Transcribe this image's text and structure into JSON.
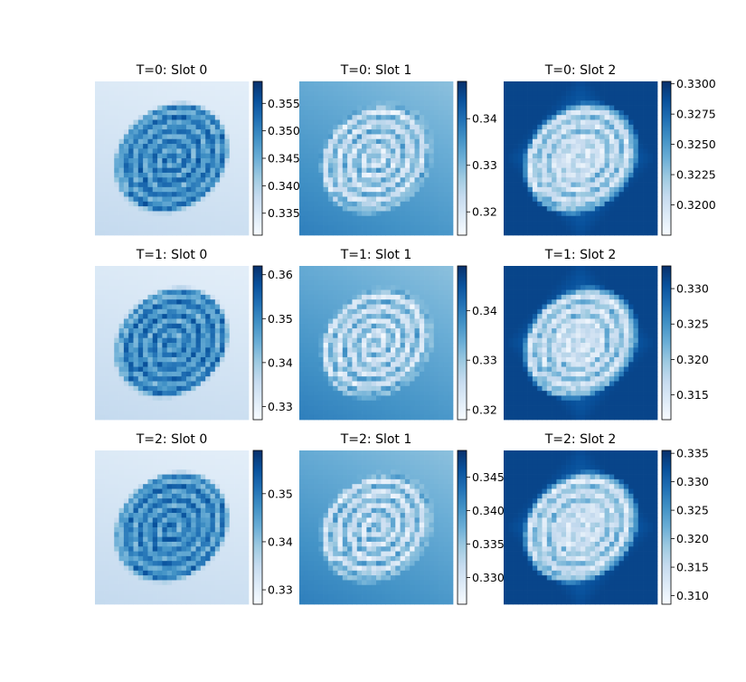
{
  "chart_data": [
    {
      "type": "heatmap",
      "title": "T=0: Slot 0",
      "cmap": "Blues",
      "variant": "slot0",
      "clim": [
        0.331,
        0.359
      ],
      "colorbar_ticks": [
        "0.335",
        "0.340",
        "0.345",
        "0.350",
        "0.355"
      ],
      "colorbar_tick_values": [
        0.335,
        0.34,
        0.345,
        0.35,
        0.355
      ],
      "axes": "off"
    },
    {
      "type": "heatmap",
      "title": "T=0: Slot 1",
      "cmap": "Blues",
      "variant": "slot1",
      "clim": [
        0.315,
        0.348
      ],
      "colorbar_ticks": [
        "0.32",
        "0.33",
        "0.34"
      ],
      "colorbar_tick_values": [
        0.32,
        0.33,
        0.34
      ],
      "axes": "off"
    },
    {
      "type": "heatmap",
      "title": "T=0: Slot 2",
      "cmap": "Blues",
      "variant": "slot2",
      "clim": [
        0.3175,
        0.3302
      ],
      "colorbar_ticks": [
        "0.3200",
        "0.3225",
        "0.3250",
        "0.3275",
        "0.3300"
      ],
      "colorbar_tick_values": [
        0.32,
        0.3225,
        0.325,
        0.3275,
        0.33
      ],
      "axes": "off"
    },
    {
      "type": "heatmap",
      "title": "T=1: Slot 0",
      "cmap": "Blues",
      "variant": "slot0",
      "clim": [
        0.327,
        0.362
      ],
      "colorbar_ticks": [
        "0.33",
        "0.34",
        "0.35",
        "0.36"
      ],
      "colorbar_tick_values": [
        0.33,
        0.34,
        0.35,
        0.36
      ],
      "axes": "off"
    },
    {
      "type": "heatmap",
      "title": "T=1: Slot 1",
      "cmap": "Blues",
      "variant": "slot1",
      "clim": [
        0.318,
        0.349
      ],
      "colorbar_ticks": [
        "0.32",
        "0.33",
        "0.34"
      ],
      "colorbar_tick_values": [
        0.32,
        0.33,
        0.34
      ],
      "axes": "off"
    },
    {
      "type": "heatmap",
      "title": "T=1: Slot 2",
      "cmap": "Blues",
      "variant": "slot2",
      "clim": [
        0.3115,
        0.3332
      ],
      "colorbar_ticks": [
        "0.315",
        "0.320",
        "0.325",
        "0.330"
      ],
      "colorbar_tick_values": [
        0.315,
        0.32,
        0.325,
        0.33
      ],
      "axes": "off"
    },
    {
      "type": "heatmap",
      "title": "T=2: Slot 0",
      "cmap": "Blues",
      "variant": "slot0",
      "clim": [
        0.327,
        0.359
      ],
      "colorbar_ticks": [
        "0.33",
        "0.34",
        "0.35"
      ],
      "colorbar_tick_values": [
        0.33,
        0.34,
        0.35
      ],
      "axes": "off"
    },
    {
      "type": "heatmap",
      "title": "T=2: Slot 1",
      "cmap": "Blues",
      "variant": "slot1",
      "clim": [
        0.326,
        0.349
      ],
      "colorbar_ticks": [
        "0.330",
        "0.335",
        "0.340",
        "0.345"
      ],
      "colorbar_tick_values": [
        0.33,
        0.335,
        0.34,
        0.345
      ],
      "axes": "off"
    },
    {
      "type": "heatmap",
      "title": "T=2: Slot 2",
      "cmap": "Blues",
      "variant": "slot2",
      "clim": [
        0.3085,
        0.3355
      ],
      "colorbar_ticks": [
        "0.310",
        "0.315",
        "0.320",
        "0.325",
        "0.330",
        "0.335"
      ],
      "colorbar_tick_values": [
        0.31,
        0.315,
        0.32,
        0.325,
        0.33,
        0.335
      ],
      "axes": "off"
    }
  ],
  "colors": {
    "blues_light": "#f7fbff",
    "blues_dark": "#08306b"
  }
}
